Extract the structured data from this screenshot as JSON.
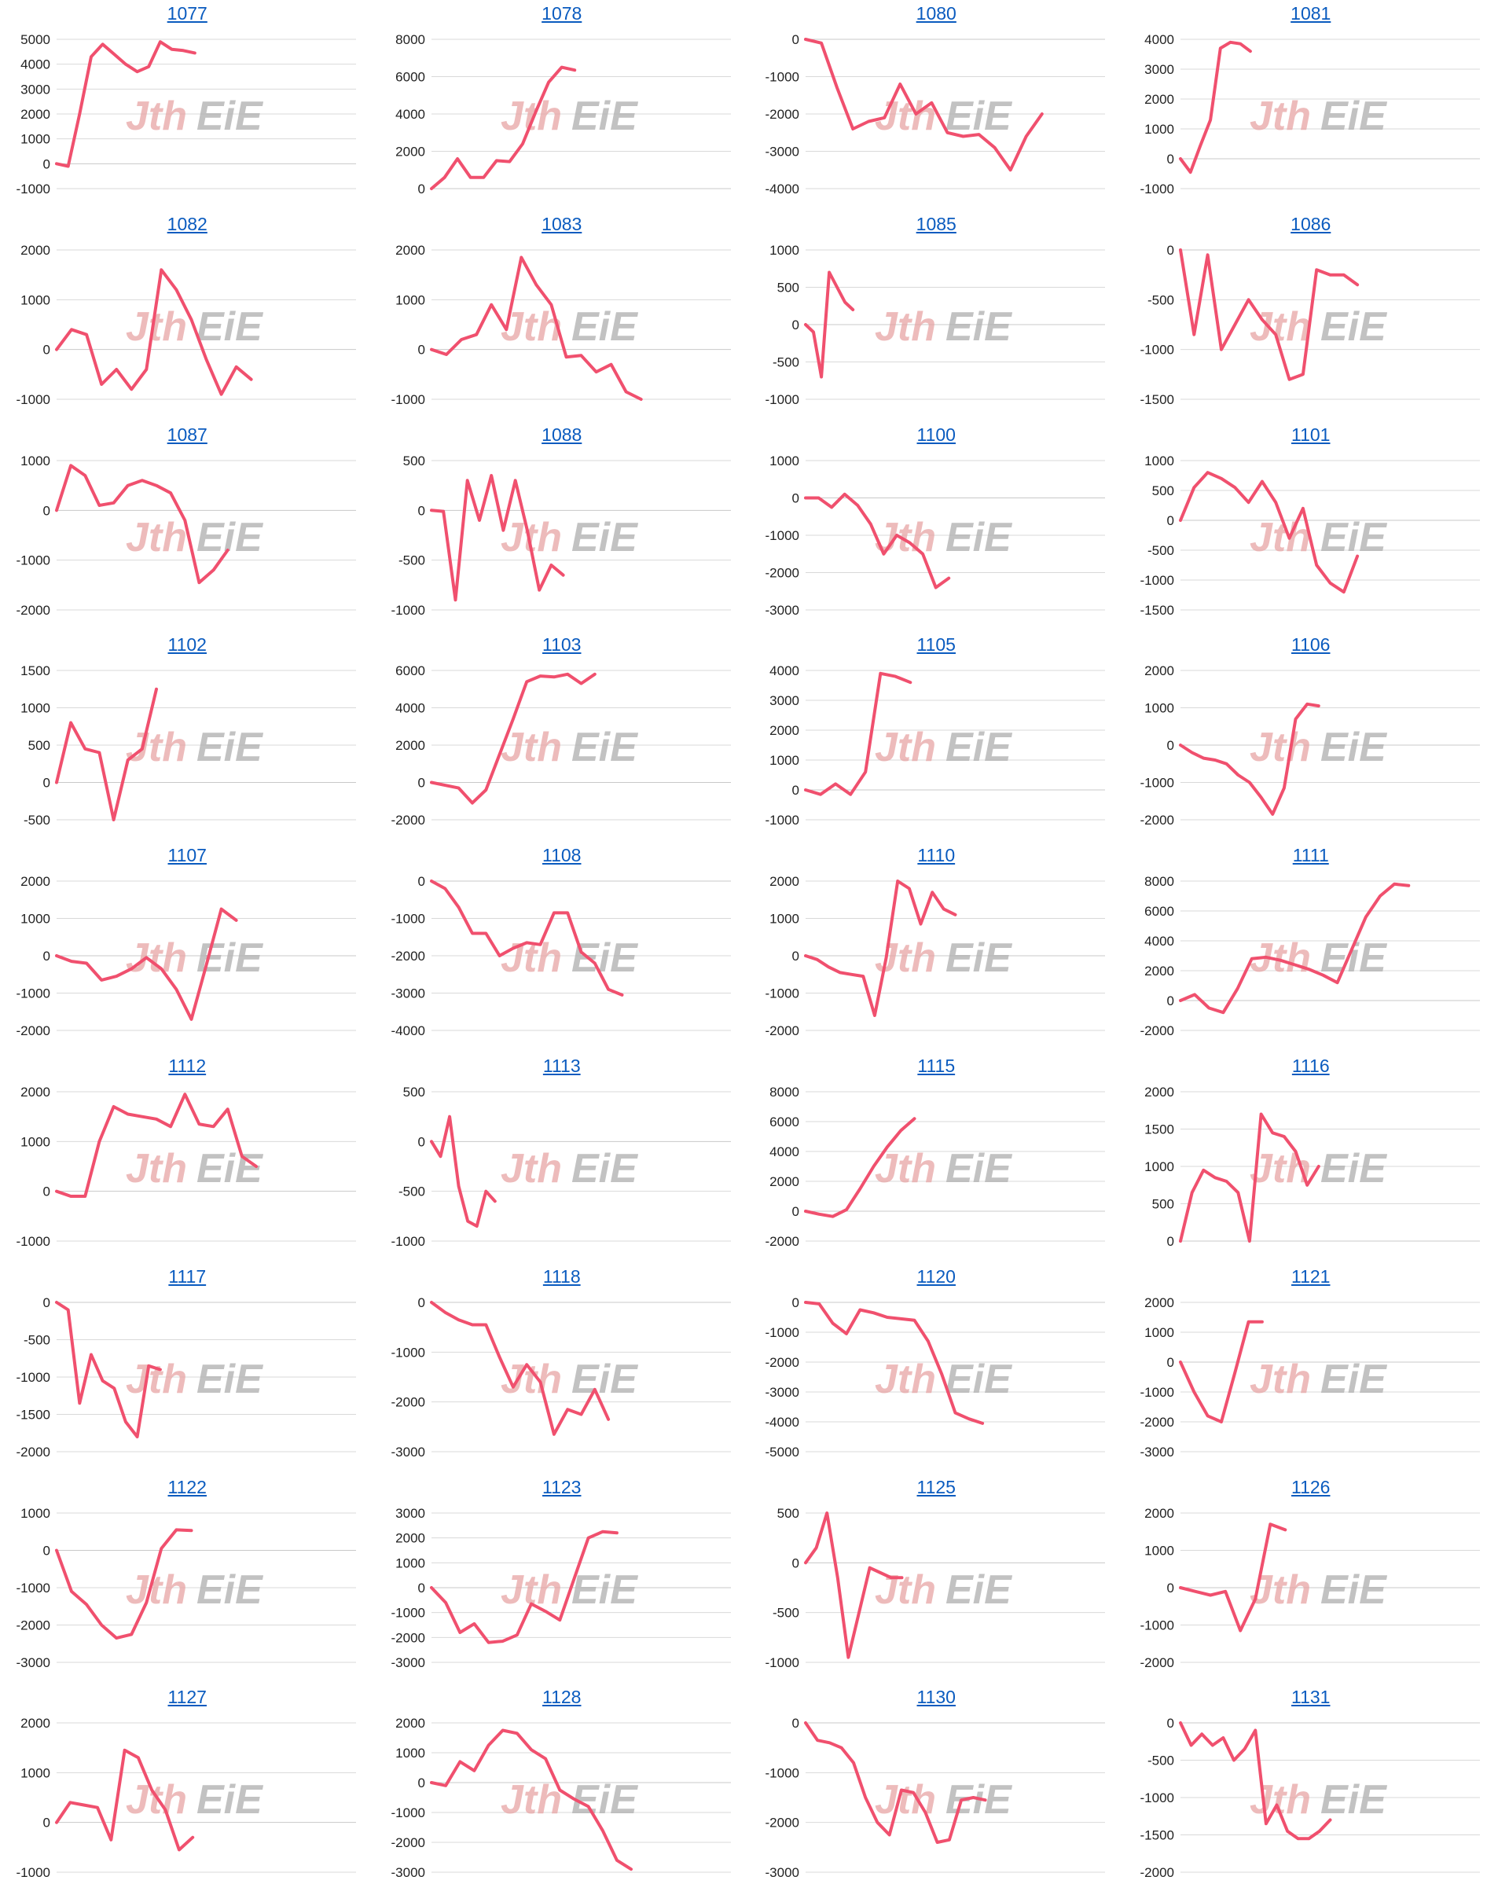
{
  "colors": {
    "line": "#f0506e",
    "grid": "#d9d9d9",
    "title": "#0a5bbf"
  },
  "watermark": {
    "part_a": "Jth",
    "part_b": "EiE"
  },
  "chart_data": [
    {
      "title": "1077",
      "type": "line",
      "yticks": [
        5000,
        4000,
        3000,
        2000,
        1000,
        0,
        -1000
      ],
      "ylim": [
        -1000,
        5000
      ],
      "y": [
        0,
        -100,
        2000,
        4300,
        4800,
        4400,
        4000,
        3700,
        3900,
        4900,
        4600,
        4550,
        4450
      ],
      "x_slots": 26
    },
    {
      "title": "1078",
      "type": "line",
      "yticks": [
        8000,
        6000,
        4000,
        2000,
        0
      ],
      "ylim": [
        0,
        8000
      ],
      "y": [
        0,
        600,
        1600,
        600,
        600,
        1500,
        1450,
        2400,
        4100,
        5700,
        6500,
        6350
      ],
      "x_slots": 23
    },
    {
      "title": "1080",
      "type": "line",
      "yticks": [
        0,
        -1000,
        -2000,
        -3000,
        -4000
      ],
      "ylim": [
        -4000,
        0
      ],
      "y": [
        0,
        -100,
        -1300,
        -2400,
        -2200,
        -2100,
        -1200,
        -2000,
        -1700,
        -2500,
        -2600,
        -2550,
        -2900,
        -3500,
        -2600,
        -2000
      ],
      "x_slots": 19
    },
    {
      "title": "1081",
      "type": "line",
      "yticks": [
        4000,
        3000,
        2000,
        1000,
        0,
        -1000
      ],
      "ylim": [
        -1000,
        4000
      ],
      "y": [
        0,
        -450,
        450,
        1300,
        3700,
        3900,
        3850,
        3600
      ],
      "x_slots": 30
    },
    {
      "title": "1082",
      "type": "line",
      "yticks": [
        2000,
        1000,
        0,
        -1000
      ],
      "ylim": [
        -1000,
        2000
      ],
      "y": [
        0,
        400,
        300,
        -700,
        -400,
        -800,
        -400,
        1600,
        1200,
        600,
        -200,
        -900,
        -350,
        -600
      ],
      "x_slots": 20
    },
    {
      "title": "1083",
      "type": "line",
      "yticks": [
        2000,
        1000,
        0,
        -1000
      ],
      "ylim": [
        -1000,
        2000
      ],
      "y": [
        0,
        -100,
        200,
        300,
        900,
        400,
        1850,
        1300,
        900,
        -150,
        -120,
        -450,
        -300,
        -850,
        -1000
      ],
      "x_slots": 20
    },
    {
      "title": "1085",
      "type": "line",
      "yticks": [
        1000,
        500,
        0,
        -500,
        -1000
      ],
      "ylim": [
        -1000,
        1000
      ],
      "y": [
        0,
        -100,
        -700,
        700,
        500,
        300,
        200
      ],
      "x_slots": 38
    },
    {
      "title": "1086",
      "type": "line",
      "yticks": [
        0,
        -500,
        -1000,
        -1500
      ],
      "ylim": [
        -1500,
        0
      ],
      "y": [
        0,
        -850,
        -50,
        -1000,
        -750,
        -500,
        -700,
        -850,
        -1300,
        -1250,
        -200,
        -250,
        -250,
        -350
      ],
      "x_slots": 22
    },
    {
      "title": "1087",
      "type": "line",
      "yticks": [
        1000,
        0,
        -1000,
        -2000
      ],
      "ylim": [
        -2000,
        1000
      ],
      "y": [
        0,
        900,
        700,
        100,
        150,
        500,
        600,
        500,
        350,
        -200,
        -1450,
        -1200,
        -800
      ],
      "x_slots": 21
    },
    {
      "title": "1088",
      "type": "line",
      "yticks": [
        500,
        0,
        -500,
        -1000
      ],
      "ylim": [
        -1000,
        500
      ],
      "y": [
        0,
        -10,
        -900,
        300,
        -100,
        350,
        -200,
        300,
        -200,
        -800,
        -550,
        -650
      ],
      "x_slots": 25
    },
    {
      "title": "1100",
      "type": "line",
      "yticks": [
        1000,
        0,
        -1000,
        -2000,
        -3000
      ],
      "ylim": [
        -3000,
        1000
      ],
      "y": [
        0,
        0,
        -250,
        100,
        -200,
        -700,
        -1500,
        -1000,
        -1200,
        -1500,
        -2400,
        -2150
      ],
      "x_slots": 23
    },
    {
      "title": "1101",
      "type": "line",
      "yticks": [
        1000,
        500,
        0,
        -500,
        -1000,
        -1500
      ],
      "ylim": [
        -1500,
        1000
      ],
      "y": [
        0,
        550,
        800,
        700,
        550,
        300,
        650,
        300,
        -300,
        200,
        -750,
        -1050,
        -1200,
        -600
      ],
      "x_slots": 22
    },
    {
      "title": "1102",
      "type": "line",
      "yticks": [
        1500,
        1000,
        500,
        0,
        -500
      ],
      "ylim": [
        -500,
        1500
      ],
      "y": [
        0,
        800,
        450,
        400,
        -500,
        300,
        450,
        1250
      ],
      "x_slots": 21
    },
    {
      "title": "1103",
      "type": "line",
      "yticks": [
        6000,
        4000,
        2000,
        0,
        -2000
      ],
      "ylim": [
        -2000,
        6000
      ],
      "y": [
        0,
        -150,
        -300,
        -1100,
        -400,
        1500,
        3400,
        5400,
        5700,
        5650,
        5800,
        5300,
        5800
      ],
      "x_slots": 22
    },
    {
      "title": "1105",
      "type": "line",
      "yticks": [
        4000,
        3000,
        2000,
        1000,
        0,
        -1000
      ],
      "ylim": [
        -1000,
        4000
      ],
      "y": [
        0,
        -150,
        200,
        -150,
        600,
        3900,
        3800,
        3600
      ],
      "x_slots": 20
    },
    {
      "title": "1106",
      "type": "line",
      "yticks": [
        2000,
        1000,
        0,
        -1000,
        -2000
      ],
      "ylim": [
        -2000,
        2000
      ],
      "y": [
        0,
        -200,
        -350,
        -400,
        -500,
        -800,
        -1000,
        -1400,
        -1850,
        -1150,
        700,
        1100,
        1050
      ],
      "x_slots": 26
    },
    {
      "title": "1107",
      "type": "line",
      "yticks": [
        2000,
        1000,
        0,
        -1000,
        -2000
      ],
      "ylim": [
        -2000,
        2000
      ],
      "y": [
        0,
        -150,
        -200,
        -650,
        -550,
        -350,
        -50,
        -350,
        -900,
        -1700,
        -250,
        1250,
        950
      ],
      "x_slots": 20
    },
    {
      "title": "1108",
      "type": "line",
      "yticks": [
        0,
        -1000,
        -2000,
        -3000,
        -4000
      ],
      "ylim": [
        -4000,
        0
      ],
      "y": [
        0,
        -200,
        -700,
        -1400,
        -1400,
        -2000,
        -1800,
        -1650,
        -1700,
        -850,
        -850,
        -1900,
        -2200,
        -2900,
        -3050
      ],
      "x_slots": 22
    },
    {
      "title": "1110",
      "type": "line",
      "yticks": [
        2000,
        1000,
        0,
        -1000,
        -2000
      ],
      "ylim": [
        -2000,
        2000
      ],
      "y": [
        0,
        -100,
        -300,
        -450,
        -500,
        -550,
        -1600,
        -50,
        2000,
        1800,
        850,
        1700,
        1250,
        1100
      ],
      "x_slots": 26
    },
    {
      "title": "1111",
      "type": "line",
      "yticks": [
        8000,
        6000,
        4000,
        2000,
        0,
        -2000
      ],
      "ylim": [
        -2000,
        8000
      ],
      "y": [
        0,
        400,
        -500,
        -800,
        800,
        2800,
        2900,
        2700,
        2400,
        2100,
        1700,
        1200,
        3400,
        5600,
        7000,
        7800,
        7700
      ],
      "x_slots": 21
    },
    {
      "title": "1112",
      "type": "line",
      "yticks": [
        2000,
        1000,
        0,
        -1000
      ],
      "ylim": [
        -1000,
        2000
      ],
      "y": [
        0,
        -100,
        -100,
        1000,
        1700,
        1550,
        1500,
        1450,
        1300,
        1950,
        1350,
        1300,
        1650,
        700,
        500
      ],
      "x_slots": 21
    },
    {
      "title": "1113",
      "type": "line",
      "yticks": [
        500,
        0,
        -500,
        -1000
      ],
      "ylim": [
        -1000,
        500
      ],
      "y": [
        0,
        -150,
        250,
        -450,
        -800,
        -850,
        -500,
        -600
      ],
      "x_slots": 33
    },
    {
      "title": "1115",
      "type": "line",
      "yticks": [
        8000,
        6000,
        4000,
        2000,
        0,
        -2000
      ],
      "ylim": [
        -2000,
        8000
      ],
      "y": [
        0,
        -200,
        -350,
        100,
        1500,
        3000,
        4300,
        5400,
        6200
      ],
      "x_slots": 22
    },
    {
      "title": "1116",
      "type": "line",
      "yticks": [
        2000,
        1500,
        1000,
        500,
        0
      ],
      "ylim": [
        0,
        2000
      ],
      "y": [
        0,
        650,
        950,
        850,
        800,
        650,
        0,
        1700,
        1450,
        1400,
        1200,
        750,
        1000
      ],
      "x_slots": 26
    },
    {
      "title": "1117",
      "type": "line",
      "yticks": [
        0,
        -500,
        -1000,
        -1500,
        -2000
      ],
      "ylim": [
        -2000,
        0
      ],
      "y": [
        0,
        -100,
        -1350,
        -700,
        -1050,
        -1150,
        -1600,
        -1800,
        -850,
        -900
      ],
      "x_slots": 26
    },
    {
      "title": "1118",
      "type": "line",
      "yticks": [
        0,
        -1000,
        -2000,
        -3000
      ],
      "ylim": [
        -3000,
        0
      ],
      "y": [
        0,
        -200,
        -350,
        -450,
        -450,
        -1100,
        -1700,
        -1250,
        -1600,
        -2650,
        -2150,
        -2250,
        -1750,
        -2350
      ],
      "x_slots": 22
    },
    {
      "title": "1120",
      "type": "line",
      "yticks": [
        0,
        -1000,
        -2000,
        -3000,
        -4000,
        -5000
      ],
      "ylim": [
        -5000,
        0
      ],
      "y": [
        0,
        -50,
        -700,
        -1050,
        -250,
        -350,
        -500,
        -550,
        -600,
        -1300,
        -2400,
        -3700,
        -3900,
        -4050
      ],
      "x_slots": 22
    },
    {
      "title": "1121",
      "type": "line",
      "yticks": [
        2000,
        1000,
        0,
        -1000,
        -2000,
        -3000
      ],
      "ylim": [
        -3000,
        2000
      ],
      "y": [
        0,
        -1000,
        -1800,
        -2000,
        -350,
        1350,
        1350
      ],
      "x_slots": 22
    },
    {
      "title": "1122",
      "type": "line",
      "yticks": [
        1000,
        0,
        -1000,
        -2000,
        -3000
      ],
      "ylim": [
        -3000,
        1000
      ],
      "y": [
        0,
        -1100,
        -1450,
        -2000,
        -2350,
        -2250,
        -1400,
        50,
        550,
        530
      ],
      "x_slots": 20
    },
    {
      "title": "1123",
      "type": "line",
      "yticks": [
        3000,
        2000,
        1000,
        0,
        -1000,
        -2000,
        -3000
      ],
      "ylim": [
        -3000,
        3000
      ],
      "y": [
        0,
        -600,
        -1800,
        -1450,
        -2200,
        -2150,
        -1900,
        -650,
        -950,
        -1300,
        350,
        2000,
        2250,
        2200
      ],
      "x_slots": 21
    },
    {
      "title": "1125",
      "type": "line",
      "yticks": [
        500,
        0,
        -500,
        -1000
      ],
      "ylim": [
        -1000,
        500
      ],
      "y": [
        0,
        150,
        500,
        -150,
        -950,
        -500,
        -50,
        -100,
        -150,
        -150
      ],
      "x_slots": 28
    },
    {
      "title": "1126",
      "type": "line",
      "yticks": [
        2000,
        1000,
        0,
        -1000,
        -2000
      ],
      "ylim": [
        -2000,
        2000
      ],
      "y": [
        0,
        -100,
        -200,
        -100,
        -1150,
        -300,
        1700,
        1550
      ],
      "x_slots": 20
    },
    {
      "title": "1127",
      "type": "line",
      "yticks": [
        2000,
        1000,
        0,
        -1000
      ],
      "ylim": [
        -1000,
        2000
      ],
      "y": [
        0,
        400,
        350,
        300,
        -350,
        1450,
        1300,
        650,
        250,
        -550,
        -300
      ],
      "x_slots": 22
    },
    {
      "title": "1128",
      "type": "line",
      "yticks": [
        2000,
        1000,
        0,
        -1000,
        -2000,
        -3000
      ],
      "ylim": [
        -3000,
        2000
      ],
      "y": [
        0,
        -100,
        700,
        400,
        1250,
        1750,
        1650,
        1100,
        800,
        -250,
        -550,
        -800,
        -1600,
        -2600,
        -2900
      ],
      "x_slots": 21
    },
    {
      "title": "1130",
      "type": "line",
      "yticks": [
        0,
        -1000,
        -2000,
        -3000
      ],
      "ylim": [
        -3000,
        0
      ],
      "y": [
        0,
        -350,
        -400,
        -500,
        -800,
        -1500,
        -2000,
        -2250,
        -1350,
        -1400,
        -1800,
        -2400,
        -2350,
        -1550,
        -1500,
        -1550
      ],
      "x_slots": 25
    },
    {
      "title": "1131",
      "type": "line",
      "yticks": [
        0,
        -500,
        -1000,
        -1500,
        -2000
      ],
      "ylim": [
        -2000,
        0
      ],
      "y": [
        0,
        -300,
        -150,
        -300,
        -200,
        -500,
        -350,
        -100,
        -1350,
        -1100,
        -1450,
        -1550,
        -1550,
        -1450,
        -1300
      ],
      "x_slots": 28
    }
  ]
}
